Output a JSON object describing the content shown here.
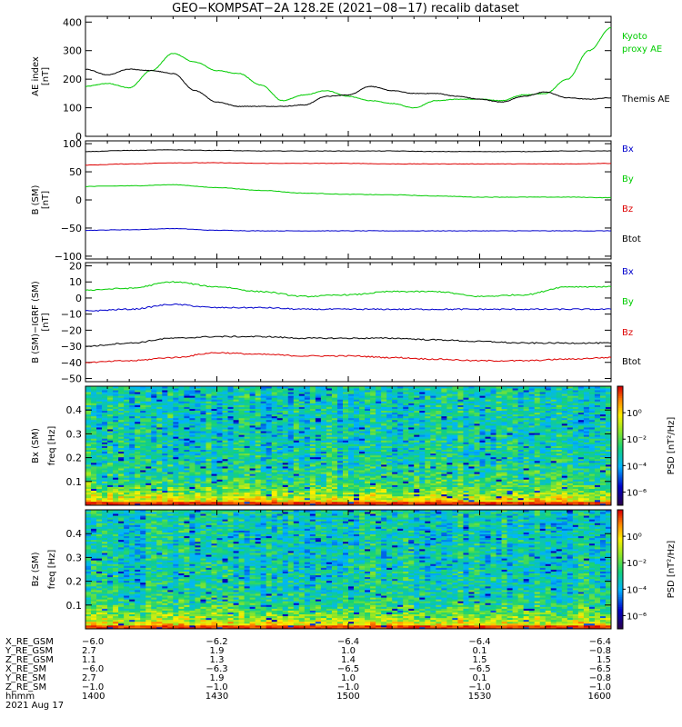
{
  "title": "GEO−KOMPSAT−2A 128.2E (2021−08−17) recalib dataset",
  "colors": {
    "black": "#000000",
    "green": "#00cc00",
    "red": "#dd0000",
    "blue": "#0000cc"
  },
  "chart_data": [
    {
      "type": "line",
      "panel": "ae_index",
      "ylabel_lines": [
        "AE index",
        "[nT]"
      ],
      "ylim": [
        0,
        420
      ],
      "yticks": [
        0,
        100,
        200,
        300,
        400
      ],
      "xlim": [
        0,
        120
      ],
      "x": [
        0,
        5,
        10,
        15,
        20,
        25,
        30,
        35,
        40,
        45,
        50,
        55,
        60,
        65,
        70,
        75,
        80,
        85,
        90,
        95,
        100,
        105,
        110,
        115,
        120
      ],
      "series": [
        {
          "name": "Kyoto proxy AE",
          "legend_lines": [
            "Kyoto",
            "proxy AE"
          ],
          "color": "green",
          "values": [
            175,
            185,
            170,
            230,
            290,
            260,
            230,
            220,
            180,
            125,
            145,
            160,
            140,
            125,
            115,
            100,
            125,
            130,
            130,
            125,
            145,
            150,
            200,
            300,
            380
          ]
        },
        {
          "name": "Themis AE",
          "legend_lines": [
            "Themis AE"
          ],
          "color": "black",
          "values": [
            235,
            215,
            235,
            230,
            220,
            160,
            120,
            105,
            105,
            105,
            110,
            140,
            145,
            175,
            160,
            150,
            150,
            140,
            130,
            120,
            140,
            155,
            135,
            130,
            135
          ]
        }
      ]
    },
    {
      "type": "line",
      "panel": "b_sm",
      "ylabel_lines": [
        "B (SM)",
        "[nT]"
      ],
      "ylim": [
        -105,
        105
      ],
      "yticks": [
        -100,
        -50,
        0,
        50,
        100
      ],
      "xlim": [
        0,
        120
      ],
      "x": [
        0,
        10,
        20,
        30,
        40,
        50,
        60,
        70,
        80,
        90,
        100,
        110,
        120
      ],
      "series": [
        {
          "name": "Bx",
          "color": "blue",
          "values": [
            -54,
            -53,
            -51,
            -54,
            -55,
            -55,
            -55,
            -55,
            -55,
            -55,
            -55,
            -55,
            -55
          ]
        },
        {
          "name": "By",
          "color": "green",
          "values": [
            24,
            25,
            27,
            22,
            17,
            12,
            10,
            9,
            7,
            5,
            5,
            5,
            4
          ]
        },
        {
          "name": "Bz",
          "color": "red",
          "values": [
            62,
            64,
            66,
            66,
            65,
            65,
            65,
            64,
            64,
            64,
            64,
            64,
            65
          ]
        },
        {
          "name": "Btot",
          "color": "black",
          "values": [
            86,
            88,
            89,
            88,
            87,
            87,
            87,
            87,
            86,
            86,
            86,
            87,
            87
          ]
        }
      ]
    },
    {
      "type": "line",
      "panel": "b_minus_igrf",
      "ylabel_lines": [
        "B (SM)−IGRF (SM)",
        "[nT]"
      ],
      "ylim": [
        -52,
        22
      ],
      "yticks": [
        -50,
        -40,
        -30,
        -20,
        -10,
        0,
        10,
        20
      ],
      "xlim": [
        0,
        120
      ],
      "x": [
        0,
        10,
        20,
        30,
        40,
        50,
        60,
        70,
        80,
        90,
        100,
        110,
        120
      ],
      "series": [
        {
          "name": "Bx",
          "color": "blue",
          "values": [
            -8,
            -7,
            -4,
            -6,
            -6,
            -7,
            -7,
            -7,
            -7,
            -7,
            -7,
            -7,
            -7
          ]
        },
        {
          "name": "By",
          "color": "green",
          "values": [
            5,
            6,
            10,
            7,
            4,
            1,
            2,
            4,
            4,
            1,
            2,
            7,
            7
          ]
        },
        {
          "name": "Bz",
          "color": "red",
          "values": [
            -40,
            -39,
            -37,
            -34,
            -35,
            -36,
            -36,
            -37,
            -38,
            -39,
            -39,
            -38,
            -37
          ]
        },
        {
          "name": "Btot",
          "color": "black",
          "values": [
            -30,
            -28,
            -25,
            -24,
            -24,
            -25,
            -25,
            -25,
            -26,
            -27,
            -28,
            -28,
            -28
          ]
        }
      ]
    },
    {
      "type": "heatmap",
      "panel": "bx_psd",
      "ylabel_lines": [
        "Bx (SM)",
        "freq [Hz]"
      ],
      "ylim": [
        0,
        0.5
      ],
      "yticks": [
        0.1,
        0.2,
        0.3,
        0.4
      ],
      "colorbar": {
        "label": "PSD [nT²/Hz]",
        "ticks": [
          "10⁰",
          "10⁻²",
          "10⁻⁴",
          "10⁻⁶"
        ],
        "tick_exponents": [
          0,
          -2,
          -4,
          -6
        ],
        "range_log": [
          -7,
          2
        ]
      }
    },
    {
      "type": "heatmap",
      "panel": "bz_psd",
      "ylabel_lines": [
        "Bz (SM)",
        "freq [Hz]"
      ],
      "ylim": [
        0,
        0.5
      ],
      "yticks": [
        0.1,
        0.2,
        0.3,
        0.4
      ],
      "colorbar": {
        "label": "PSD [nT²/Hz]",
        "ticks": [
          "10⁰",
          "10⁻²",
          "10⁻⁴",
          "10⁻⁶"
        ],
        "tick_exponents": [
          0,
          -2,
          -4,
          -6
        ],
        "range_log": [
          -7,
          2
        ]
      }
    }
  ],
  "orbit_table": {
    "rows": [
      {
        "label": "X_RE_GSM",
        "values": [
          "−6.0",
          "−6.2",
          "−6.4",
          "−6.4",
          "−6.4"
        ]
      },
      {
        "label": "Y_RE_GSM",
        "values": [
          "2.7",
          "1.9",
          "1.0",
          "0.1",
          "−0.8"
        ]
      },
      {
        "label": "Z_RE_GSM",
        "values": [
          "1.1",
          "1.3",
          "1.4",
          "1.5",
          "1.5"
        ]
      },
      {
        "label": "X_RE_SM",
        "values": [
          "−6.0",
          "−6.3",
          "−6.5",
          "−6.5",
          "−6.5"
        ]
      },
      {
        "label": "Y_RE_SM",
        "values": [
          "2.7",
          "1.9",
          "1.0",
          "0.1",
          "−0.8"
        ]
      },
      {
        "label": "Z_RE_SM",
        "values": [
          "−1.0",
          "−1.0",
          "−1.0",
          "−1.0",
          "−1.0"
        ]
      },
      {
        "label": "hhmm",
        "values": [
          "1400",
          "1430",
          "1500",
          "1530",
          "1600"
        ]
      }
    ],
    "date": "2021 Aug 17"
  }
}
